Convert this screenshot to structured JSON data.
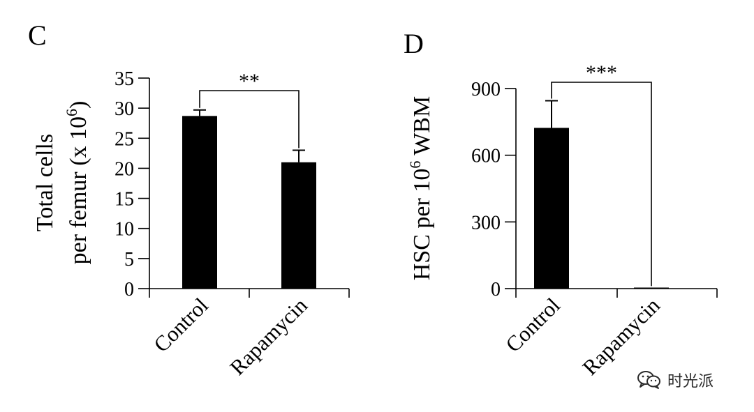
{
  "chart_data": [
    {
      "panel_label": "C",
      "type": "bar",
      "categories": [
        "Control",
        "Rapamycin"
      ],
      "values": [
        28.7,
        21.0
      ],
      "errors": [
        1.0,
        2.0
      ],
      "ylim": [
        0,
        35
      ],
      "yticks": [
        "0",
        "5",
        "10",
        "15",
        "20",
        "25",
        "30",
        "35"
      ],
      "ylabel_lines": [
        "Total cells",
        "per femur (x 10",
        "6",
        ")"
      ],
      "significance": "**",
      "bar_color": "#000000"
    },
    {
      "panel_label": "D",
      "type": "bar",
      "categories": [
        "Control",
        "Rapamycin"
      ],
      "values": [
        723,
        2
      ],
      "errors": [
        122,
        0
      ],
      "ylim": [
        0,
        900
      ],
      "yticks": [
        "0",
        "300",
        "600",
        "900"
      ],
      "ylabel_lines": [
        "HSC per 10",
        "6",
        " WBM"
      ],
      "significance": "***",
      "bar_color": "#000000"
    }
  ],
  "watermark": {
    "text": "时光派",
    "icon": "wechat-icon"
  }
}
